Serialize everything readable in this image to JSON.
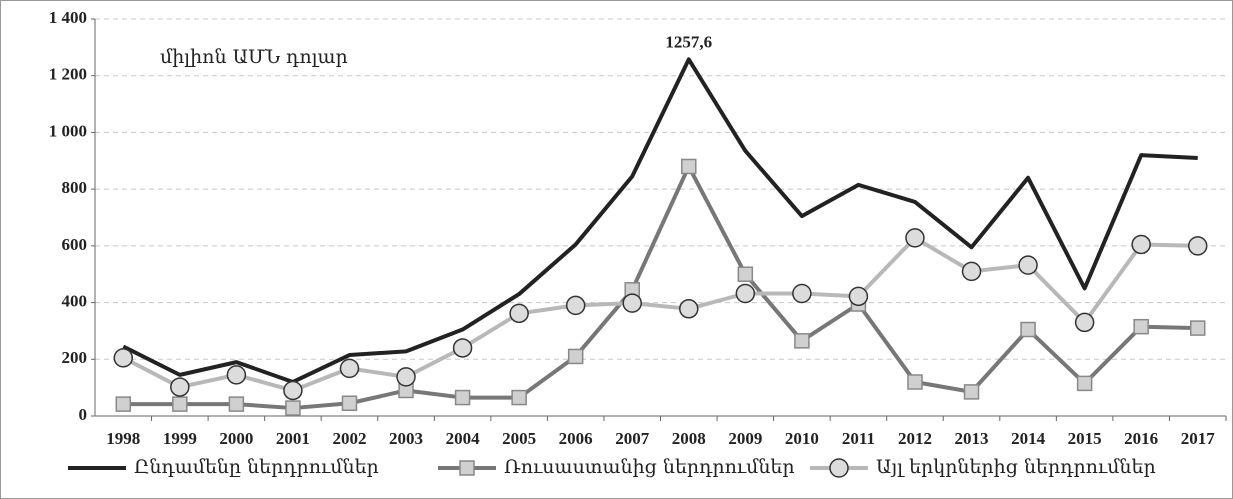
{
  "chart_data": {
    "type": "line",
    "subtitle": "միլիոն ԱՄՆ դոլար",
    "categories": [
      "1998",
      "1999",
      "2000",
      "2001",
      "2002",
      "2003",
      "2004",
      "2005",
      "2006",
      "2007",
      "2008",
      "2009",
      "2010",
      "2011",
      "2012",
      "2013",
      "2014",
      "2015",
      "2016",
      "2017"
    ],
    "series": [
      {
        "name": "Ընդամենը ներդրումներ",
        "color": "#222222",
        "marker": "none",
        "values": [
          245,
          145,
          190,
          120,
          215,
          228,
          305,
          430,
          605,
          845,
          1257.6,
          935,
          705,
          815,
          755,
          595,
          840,
          450,
          920,
          910
        ],
        "value_labels": [
          null,
          null,
          null,
          null,
          null,
          null,
          null,
          null,
          null,
          null,
          "1257,6",
          null,
          null,
          null,
          null,
          null,
          null,
          null,
          null,
          null
        ]
      },
      {
        "name": "Ռուսաստանից ներդրումներ",
        "color": "#777777",
        "marker": "square",
        "values": [
          42,
          42,
          42,
          28,
          45,
          90,
          65,
          65,
          210,
          445,
          880,
          500,
          265,
          395,
          120,
          85,
          305,
          115,
          315,
          310
        ]
      },
      {
        "name": "Այլ երկրներից ներդրումներ",
        "color": "#b8b8b8",
        "marker": "circle",
        "values": [
          205,
          102,
          145,
          90,
          168,
          138,
          240,
          362,
          390,
          398,
          378,
          432,
          432,
          422,
          628,
          510,
          532,
          330,
          605,
          600
        ]
      }
    ],
    "ylim": [
      0,
      1400
    ],
    "yticks": [
      0,
      200,
      400,
      600,
      800,
      {
        "value": 1000,
        "label": "1 000"
      },
      {
        "value": 1200,
        "label": "1 200"
      },
      {
        "value": 1400,
        "label": "1 400"
      }
    ],
    "grid": true,
    "legend": "bottom"
  }
}
